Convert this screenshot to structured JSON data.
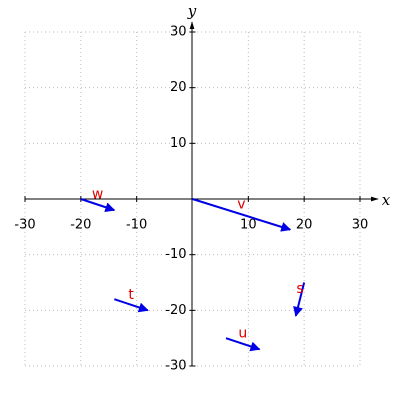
{
  "chart_data": {
    "type": "quiver",
    "x_label": "x",
    "y_label": "y",
    "xlim": [
      -30,
      30
    ],
    "ylim": [
      -30,
      30
    ],
    "xticks": [
      -30,
      -20,
      -10,
      10,
      20,
      30
    ],
    "yticks": [
      -30,
      -20,
      -10,
      10,
      20,
      30
    ],
    "grid": true,
    "color": "#0000e6",
    "label_color": "#e00000",
    "vectors": [
      {
        "name": "v",
        "x0": 0,
        "y0": 0,
        "dx": 17.5,
        "dy": -5.5
      },
      {
        "name": "w",
        "x0": -20,
        "y0": 0,
        "dx": 6,
        "dy": -2
      },
      {
        "name": "t",
        "x0": -14,
        "y0": -18,
        "dx": 6,
        "dy": -2
      },
      {
        "name": "u",
        "x0": 6,
        "y0": -25,
        "dx": 6,
        "dy": -2
      },
      {
        "name": "s",
        "x0": 20,
        "y0": -15,
        "dx": -1.5,
        "dy": -6
      }
    ]
  }
}
